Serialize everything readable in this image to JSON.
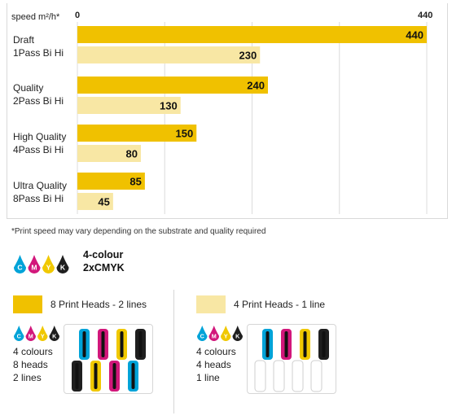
{
  "chart_data": {
    "type": "bar",
    "orientation": "horizontal",
    "axis_title": "speed m²/h*",
    "xlim": [
      0,
      440
    ],
    "tick_labels": [
      "0",
      "440"
    ],
    "categories": [
      {
        "line1": "Draft",
        "line2": "1Pass Bi Hi"
      },
      {
        "line1": "Quality",
        "line2": "2Pass Bi Hi"
      },
      {
        "line1": "High Quality",
        "line2": "4Pass Bi Hi"
      },
      {
        "line1": "Ultra Quality",
        "line2": "8Pass Bi Hi"
      }
    ],
    "series": [
      {
        "name": "8 Print Heads - 2 lines",
        "color": "#f0c100",
        "values": [
          440,
          240,
          150,
          85
        ]
      },
      {
        "name": "4 Print Heads - 1 line",
        "color": "#f8e7a4",
        "values": [
          230,
          130,
          80,
          45
        ]
      }
    ],
    "grid": true
  },
  "note": "*Print speed may vary depending on the substrate and quality required",
  "colour_mode": {
    "line1": "4-colour",
    "line2": "2xCMYK"
  },
  "ink_letters": [
    "C",
    "M",
    "Y",
    "K"
  ],
  "ink_colors": {
    "C": "#00a3d8",
    "M": "#d2177b",
    "Y": "#f0c800",
    "K": "#1f1f1f"
  },
  "configs": [
    {
      "legend": "8 Print Heads - 2 lines",
      "swatch_color": "#f0c100",
      "desc": [
        "4 colours",
        "8 heads",
        "2 lines"
      ]
    },
    {
      "legend": "4 Print Heads - 1 line",
      "swatch_color": "#f8e7a4",
      "desc": [
        "4 colours",
        "4 heads",
        "1 line"
      ]
    }
  ]
}
